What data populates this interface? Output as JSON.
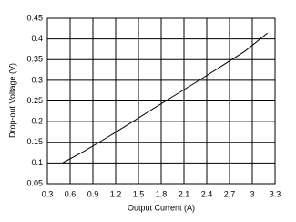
{
  "chart_data": {
    "type": "line",
    "x_label": "Output Current (A)",
    "y_label": "Drop-out Voltage (V)",
    "x": [
      0.5,
      0.8,
      1.1,
      1.4,
      1.7,
      2.0,
      2.3,
      2.6,
      2.9,
      3.2
    ],
    "series": [
      {
        "color": "#000000",
        "values": [
          0.1,
          0.13,
          0.163,
          0.197,
          0.232,
          0.266,
          0.3,
          0.335,
          0.37,
          0.414
        ]
      }
    ],
    "xlim": [
      0.3,
      3.3
    ],
    "xticks": [
      0.3,
      0.6,
      0.9,
      1.2,
      1.5,
      1.8,
      2.1,
      2.4,
      2.7,
      3,
      3.3
    ],
    "ylim": [
      0.05,
      0.45
    ],
    "yticks": [
      0.05,
      0.1,
      0.15,
      0.2,
      0.25,
      0.3,
      0.35,
      0.4,
      0.45
    ],
    "grid": true
  }
}
